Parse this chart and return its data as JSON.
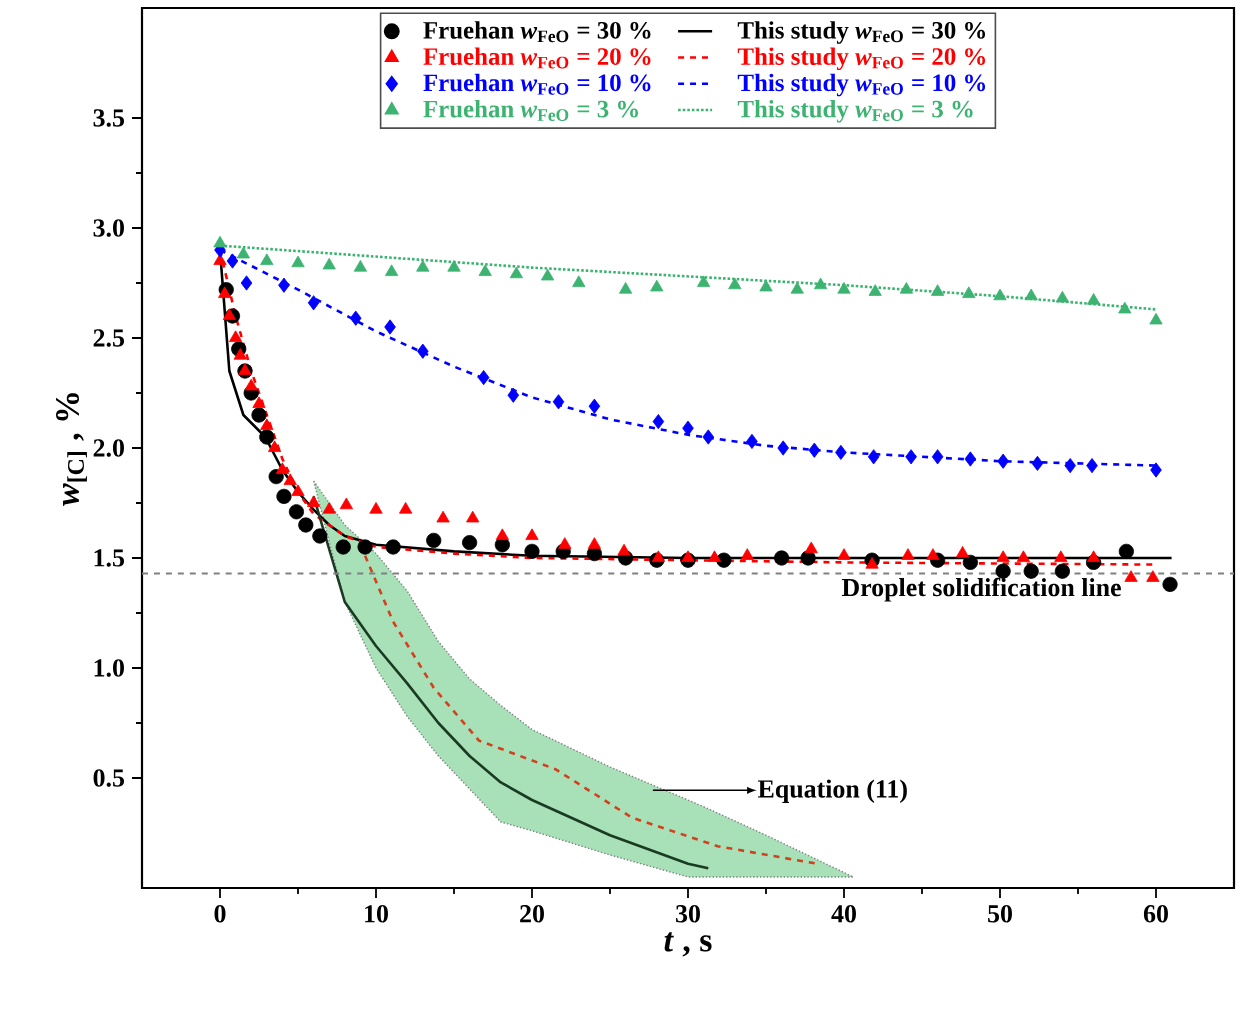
{
  "chart_data": {
    "type": "line",
    "xlabel": "*t* , s",
    "ylabel": "*w*$_{[C]}$ , %",
    "xlim": [
      -5,
      65
    ],
    "ylim": [
      0,
      4
    ],
    "xticks": [
      0,
      10,
      20,
      30,
      40,
      50,
      60
    ],
    "yticks": [
      0.5,
      {
        "value": 1,
        "label": "1.0"
      },
      1.5,
      {
        "value": 2,
        "label": "2.0"
      },
      2.5,
      {
        "value": 3,
        "label": "3.0"
      },
      3.5
    ],
    "legend": "top",
    "grid": false,
    "series": [
      {
        "name": "Fruehan *w*$_{FeO}$ = 30 %",
        "type": "scatter",
        "marker": "circle",
        "color": "#000000",
        "x": [
          0.4,
          0.8,
          1.2,
          1.6,
          2,
          2.5,
          3,
          3.6,
          4.1,
          4.9,
          5.5,
          6.4,
          7.9,
          9.3,
          11.1,
          13.7,
          16,
          18.1,
          20,
          22,
          24,
          26,
          28,
          30,
          32.3,
          36,
          37.7,
          41.8,
          46,
          48.1,
          50.2,
          52,
          54,
          56,
          58.1,
          60.9
        ],
        "values": [
          2.72,
          2.6,
          2.45,
          2.35,
          2.25,
          2.15,
          2.05,
          1.87,
          1.78,
          1.71,
          1.65,
          1.6,
          1.55,
          1.55,
          1.55,
          1.58,
          1.57,
          1.56,
          1.53,
          1.53,
          1.52,
          1.5,
          1.49,
          1.49,
          1.49,
          1.5,
          1.5,
          1.49,
          1.49,
          1.48,
          1.44,
          1.44,
          1.44,
          1.48,
          1.53,
          1.38
        ]
      },
      {
        "name": "Fruehan *w*$_{FeO}$ = 20 %",
        "type": "scatter",
        "marker": "triangle",
        "color": "#ff0000",
        "x": [
          0,
          0.3,
          0.6,
          1,
          1.3,
          1.6,
          2,
          2.5,
          3,
          3.5,
          4,
          4.5,
          5,
          6,
          7,
          8.1,
          10,
          11.9,
          14.3,
          16.2,
          18.1,
          20,
          22.1,
          24,
          25.9,
          28.1,
          30,
          31.7,
          33.8,
          37.9,
          40,
          41.8,
          44.1,
          45.7,
          47.6,
          50.2,
          51.5,
          53.9,
          56,
          58.4,
          59.8
        ],
        "values": [
          2.85,
          2.7,
          2.6,
          2.5,
          2.42,
          2.35,
          2.28,
          2.2,
          2.1,
          2.0,
          1.9,
          1.85,
          1.8,
          1.75,
          1.72,
          1.74,
          1.72,
          1.72,
          1.68,
          1.68,
          1.6,
          1.6,
          1.56,
          1.56,
          1.53,
          1.5,
          1.5,
          1.5,
          1.51,
          1.54,
          1.51,
          1.47,
          1.51,
          1.51,
          1.52,
          1.5,
          1.5,
          1.5,
          1.5,
          1.41,
          1.41
        ]
      },
      {
        "name": "Fruehan *w*$_{FeO}$ = 10 %",
        "type": "scatter",
        "marker": "diamond",
        "color": "#0000ff",
        "x": [
          0,
          0.8,
          1.7,
          4.1,
          6,
          8.7,
          10.9,
          13,
          16.9,
          18.8,
          21.7,
          24,
          28.1,
          30,
          31.3,
          34.1,
          36.1,
          38.1,
          39.8,
          41.9,
          44.3,
          46,
          48.1,
          50.2,
          52.4,
          54.5,
          55.9,
          60
        ],
        "values": [
          2.9,
          2.85,
          2.75,
          2.74,
          2.66,
          2.59,
          2.55,
          2.44,
          2.32,
          2.24,
          2.21,
          2.19,
          2.12,
          2.09,
          2.05,
          2.03,
          2.0,
          1.99,
          1.98,
          1.96,
          1.96,
          1.96,
          1.95,
          1.94,
          1.93,
          1.92,
          1.92,
          1.9
        ]
      },
      {
        "name": "Fruehan *w*$_{FeO}$ =  3 %",
        "type": "scatter",
        "marker": "triangle",
        "color": "#3cb371",
        "x": [
          0,
          1.5,
          3,
          5,
          7,
          9,
          11,
          13,
          15,
          17,
          19,
          21,
          23,
          26,
          28,
          31,
          33,
          35,
          37,
          38.5,
          40,
          42,
          44,
          46,
          48,
          50,
          52,
          54,
          56,
          58,
          60
        ],
        "values": [
          2.93,
          2.88,
          2.85,
          2.84,
          2.83,
          2.82,
          2.8,
          2.82,
          2.82,
          2.8,
          2.79,
          2.78,
          2.75,
          2.72,
          2.73,
          2.75,
          2.74,
          2.73,
          2.72,
          2.74,
          2.72,
          2.71,
          2.72,
          2.71,
          2.7,
          2.69,
          2.69,
          2.68,
          2.67,
          2.63,
          2.58
        ]
      },
      {
        "name": "This study *w*$_{FeO}$ = 30 %",
        "line_style": "solid",
        "color": "#000000",
        "x": [
          0,
          0.6,
          1.5,
          2.9,
          4,
          5,
          6,
          7,
          8,
          10,
          15,
          20,
          30,
          45,
          61
        ],
        "values": [
          2.9,
          2.35,
          2.15,
          2.05,
          1.9,
          1.8,
          1.72,
          1.65,
          1.6,
          1.56,
          1.53,
          1.51,
          1.5,
          1.5,
          1.5
        ]
      },
      {
        "name": "This study *w*$_{FeO}$ = 20 %",
        "line_style": "dashed",
        "color": "#ff0000",
        "x": [
          0,
          1,
          2,
          3,
          4,
          5,
          6,
          8,
          10,
          15,
          20,
          40,
          60
        ],
        "values": [
          2.9,
          2.6,
          2.35,
          2.15,
          1.95,
          1.8,
          1.7,
          1.6,
          1.55,
          1.52,
          1.5,
          1.48,
          1.47
        ]
      },
      {
        "name": "This study *w*$_{FeO}$ = 10 %",
        "line_style": "dashed",
        "color": "#0000ff",
        "x": [
          0,
          5,
          10,
          15,
          20,
          25,
          30,
          35,
          40,
          45,
          50,
          55,
          60
        ],
        "values": [
          2.9,
          2.72,
          2.53,
          2.37,
          2.23,
          2.13,
          2.06,
          2.01,
          1.98,
          1.96,
          1.94,
          1.93,
          1.92
        ]
      },
      {
        "name": "This study *w*$_{FeO}$ =  3 %",
        "line_style": "dotted",
        "color": "#3cb371",
        "x": [
          0,
          10,
          20,
          30,
          40,
          50,
          60
        ],
        "values": [
          2.92,
          2.87,
          2.82,
          2.78,
          2.74,
          2.69,
          2.63
        ]
      },
      {
        "line_style": "solid",
        "color": "#1a3a22",
        "x": [
          6,
          8,
          10,
          12,
          14,
          16,
          18,
          20,
          25,
          30,
          31.3,
          35,
          40.6
        ],
        "values": [
          1.78,
          1.3,
          1.1,
          0.93,
          0.75,
          0.6,
          0.48,
          0.4,
          0.24,
          0.11,
          0.09,
          null,
          null
        ],
        "lower": [
          1.85,
          1.3,
          1.0,
          0.78,
          0.6,
          0.45,
          0.3,
          0.26,
          0.15,
          0.05,
          0.05,
          0.05,
          0.05
        ],
        "upper": [
          1.85,
          1.65,
          1.52,
          1.35,
          1.12,
          0.95,
          0.83,
          0.72,
          0.55,
          0.4,
          0.36,
          0.24,
          0.05
        ]
      },
      {
        "line_style": "dashed",
        "color": "#d2401e",
        "x": [
          9.3,
          11.1,
          13.7,
          16.6,
          21.5,
          26.4,
          31.9,
          38.3
        ],
        "values": [
          1.51,
          1.21,
          0.91,
          0.67,
          0.54,
          0.32,
          0.19,
          0.11
        ]
      }
    ],
    "ref_lines": [
      {
        "axis": "y",
        "value": 1.43,
        "label": "Droplet solidification line",
        "color": "#808080",
        "line_style": "dashed"
      }
    ],
    "annotations": [
      "Equation (11)"
    ]
  }
}
